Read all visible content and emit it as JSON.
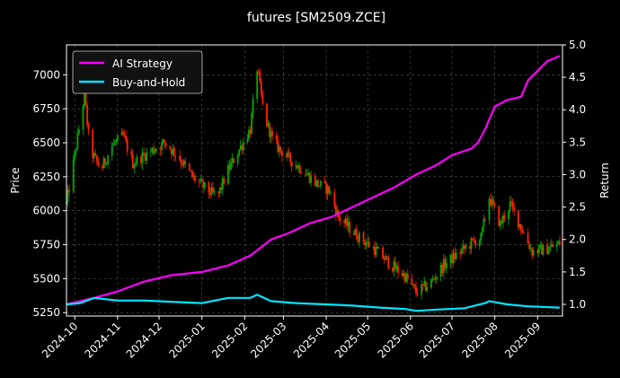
{
  "chart_data": {
    "type": "line",
    "title": "futures [SM2509.ZCE]",
    "left_axis": {
      "label": "Price",
      "ylim": [
        5225,
        7220
      ],
      "ticks": [
        5250,
        5500,
        5750,
        6000,
        6250,
        6500,
        6750,
        7000
      ]
    },
    "right_axis": {
      "label": "Return",
      "ylim": [
        0.82,
        5.0
      ],
      "ticks": [
        1.0,
        1.5,
        2.0,
        2.5,
        3.0,
        3.5,
        4.0,
        4.5,
        5.0
      ]
    },
    "x_axis": {
      "start": "2024-09-25",
      "end": "2025-09-19",
      "ticks": [
        "2024-10",
        "2024-11",
        "2024-12",
        "2025-01",
        "2025-02",
        "2025-03",
        "2025-04",
        "2025-05",
        "2025-06",
        "2025-07",
        "2025-08",
        "2025-09"
      ]
    },
    "grid": true,
    "legend": {
      "position": "top-left",
      "entries": [
        {
          "name": "AI Strategy",
          "color": "#ff00ff"
        },
        {
          "name": "Buy-and-Hold",
          "color": "#00e5ff"
        }
      ]
    },
    "candles": {
      "up_color": "#00aa00",
      "down_color": "#ff2200",
      "anchors": [
        [
          "2024-09-25",
          6050
        ],
        [
          "2024-09-30",
          6350
        ],
        [
          "2024-10-08",
          6850
        ],
        [
          "2024-10-12",
          6450
        ],
        [
          "2024-10-20",
          6300
        ],
        [
          "2024-10-28",
          6480
        ],
        [
          "2024-11-05",
          6550
        ],
        [
          "2024-11-12",
          6350
        ],
        [
          "2024-11-22",
          6420
        ],
        [
          "2024-12-05",
          6500
        ],
        [
          "2024-12-15",
          6400
        ],
        [
          "2024-12-25",
          6250
        ],
        [
          "2025-01-05",
          6150
        ],
        [
          "2025-01-12",
          6100
        ],
        [
          "2025-01-20",
          6300
        ],
        [
          "2025-01-28",
          6450
        ],
        [
          "2025-02-05",
          6600
        ],
        [
          "2025-02-10",
          7050
        ],
        [
          "2025-02-15",
          6700
        ],
        [
          "2025-02-22",
          6500
        ],
        [
          "2025-03-05",
          6380
        ],
        [
          "2025-03-15",
          6300
        ],
        [
          "2025-03-25",
          6200
        ],
        [
          "2025-04-03",
          6150
        ],
        [
          "2025-04-10",
          5950
        ],
        [
          "2025-04-20",
          5850
        ],
        [
          "2025-04-28",
          5780
        ],
        [
          "2025-05-08",
          5700
        ],
        [
          "2025-05-18",
          5600
        ],
        [
          "2025-05-28",
          5520
        ],
        [
          "2025-06-05",
          5400
        ],
        [
          "2025-06-15",
          5460
        ],
        [
          "2025-06-25",
          5600
        ],
        [
          "2025-07-05",
          5680
        ],
        [
          "2025-07-15",
          5760
        ],
        [
          "2025-07-22",
          5800
        ],
        [
          "2025-07-28",
          6100
        ],
        [
          "2025-08-05",
          5900
        ],
        [
          "2025-08-12",
          6050
        ],
        [
          "2025-08-20",
          5880
        ],
        [
          "2025-08-28",
          5700
        ],
        [
          "2025-09-08",
          5720
        ],
        [
          "2025-09-17",
          5760
        ]
      ]
    },
    "series": [
      {
        "name": "AI Strategy",
        "axis": "right",
        "color": "#ff00ff",
        "x": [
          "2024-09-25",
          "2024-10-15",
          "2024-11-01",
          "2024-11-20",
          "2024-12-10",
          "2025-01-01",
          "2025-01-20",
          "2025-02-05",
          "2025-02-20",
          "2025-03-05",
          "2025-03-20",
          "2025-04-05",
          "2025-04-20",
          "2025-05-05",
          "2025-05-20",
          "2025-06-05",
          "2025-06-20",
          "2025-07-01",
          "2025-07-15",
          "2025-07-20",
          "2025-07-25",
          "2025-07-28",
          "2025-08-01",
          "2025-08-10",
          "2025-08-20",
          "2025-08-25",
          "2025-09-01",
          "2025-09-08",
          "2025-09-17"
        ],
        "y": [
          1.0,
          1.1,
          1.2,
          1.35,
          1.45,
          1.5,
          1.6,
          1.75,
          2.0,
          2.1,
          2.25,
          2.35,
          2.5,
          2.65,
          2.8,
          3.0,
          3.15,
          3.3,
          3.4,
          3.5,
          3.7,
          3.85,
          4.05,
          4.15,
          4.2,
          4.45,
          4.6,
          4.75,
          4.83
        ]
      },
      {
        "name": "Buy-and-Hold",
        "axis": "right",
        "color": "#00e5ff",
        "x": [
          "2024-09-25",
          "2024-10-05",
          "2024-10-15",
          "2024-11-01",
          "2024-11-20",
          "2024-12-10",
          "2025-01-01",
          "2025-01-20",
          "2025-02-05",
          "2025-02-10",
          "2025-02-20",
          "2025-03-10",
          "2025-04-01",
          "2025-04-20",
          "2025-05-10",
          "2025-05-28",
          "2025-06-05",
          "2025-06-20",
          "2025-07-10",
          "2025-07-25",
          "2025-07-28",
          "2025-08-10",
          "2025-08-25",
          "2025-09-17"
        ],
        "y": [
          1.0,
          1.02,
          1.1,
          1.06,
          1.06,
          1.04,
          1.02,
          1.1,
          1.1,
          1.15,
          1.05,
          1.02,
          1.0,
          0.98,
          0.95,
          0.93,
          0.9,
          0.92,
          0.94,
          1.02,
          1.05,
          1.0,
          0.97,
          0.95
        ]
      }
    ]
  }
}
